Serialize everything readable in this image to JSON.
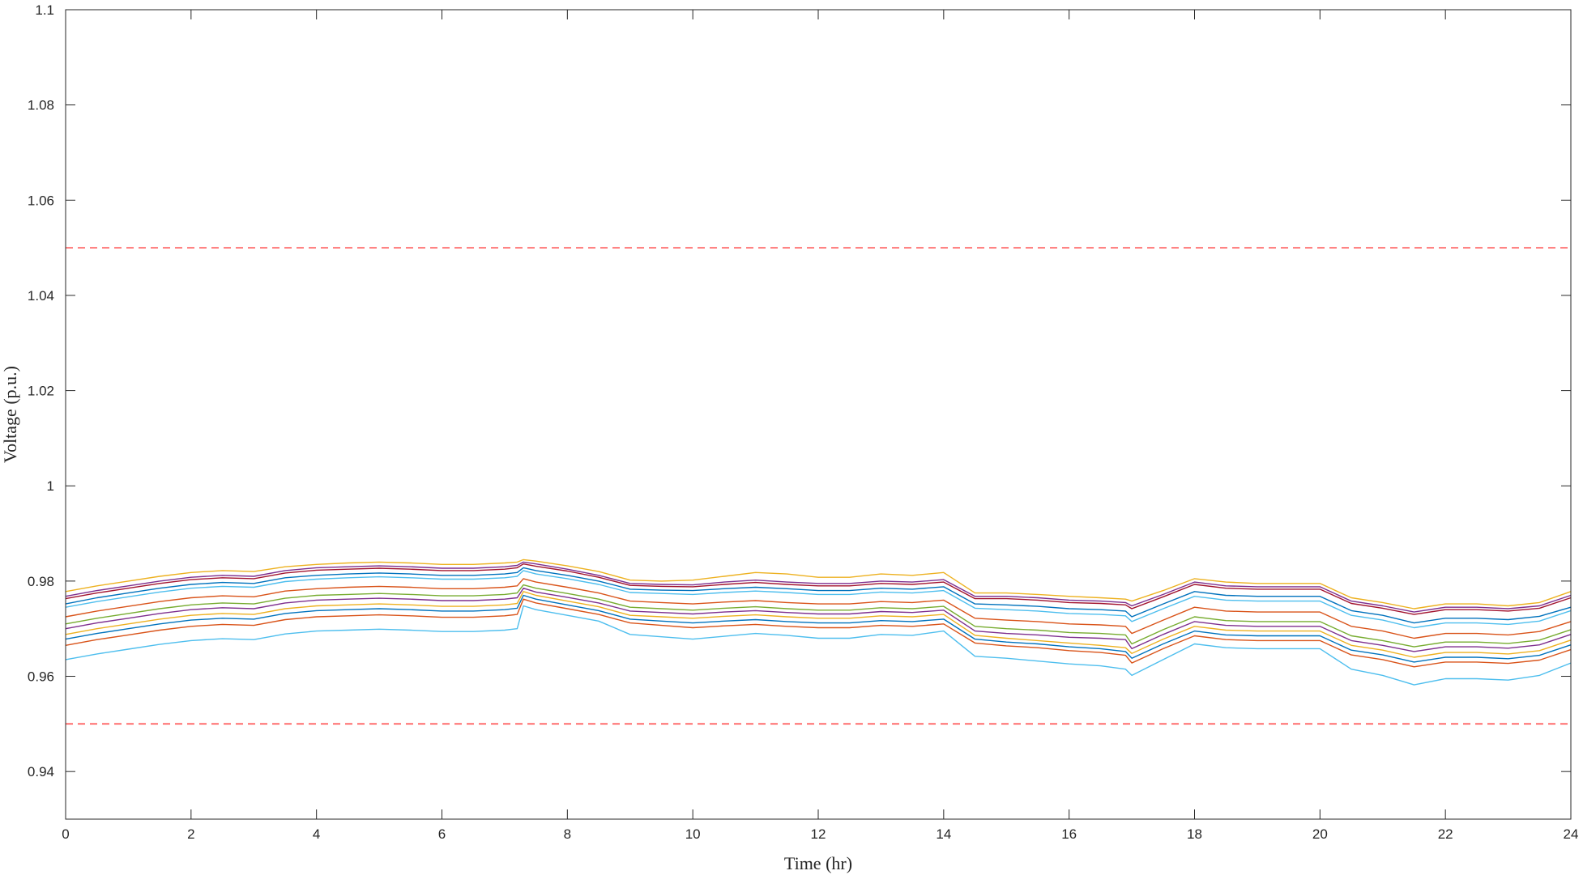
{
  "chart_data": {
    "type": "line",
    "title": "",
    "xlabel": "Time (hr)",
    "ylabel": "Voltage (p.u.)",
    "xlim": [
      0,
      24
    ],
    "ylim": [
      0.93,
      1.1
    ],
    "xticks": [
      0,
      2,
      4,
      6,
      8,
      10,
      12,
      14,
      16,
      18,
      20,
      22,
      24
    ],
    "xtick_labels": [
      "0",
      "2",
      "4",
      "6",
      "8",
      "10",
      "12",
      "14",
      "16",
      "18",
      "20",
      "22",
      "24"
    ],
    "yticks": [
      0.94,
      0.96,
      0.98,
      1.0,
      1.02,
      1.04,
      1.06,
      1.08,
      1.1
    ],
    "ytick_labels": [
      "0.94",
      "0.96",
      "0.98",
      "1",
      "1.02",
      "1.04",
      "1.06",
      "1.08",
      "1.1"
    ],
    "grid": false,
    "legend": "none",
    "limit_lines": [
      {
        "y": 1.05,
        "style": "dashed",
        "color": "#ff4d4d"
      },
      {
        "y": 0.95,
        "style": "dashed",
        "color": "#ff4d4d"
      }
    ],
    "x": [
      0,
      0.5,
      1,
      1.5,
      2,
      2.5,
      3,
      3.5,
      4,
      4.5,
      5,
      5.5,
      6,
      6.5,
      7,
      7.2,
      7.3,
      7.5,
      8,
      8.5,
      9,
      9.5,
      10,
      10.5,
      11,
      11.5,
      12,
      12.5,
      13,
      13.5,
      14,
      14.5,
      15,
      15.5,
      16,
      16.5,
      16.9,
      17,
      17.5,
      18,
      18.5,
      19,
      19.5,
      20,
      20.5,
      21,
      21.5,
      22,
      22.5,
      23,
      23.5,
      24
    ],
    "series": [
      {
        "color": "#edb120",
        "values": [
          0.9778,
          0.979,
          0.98,
          0.981,
          0.9818,
          0.9822,
          0.982,
          0.983,
          0.9835,
          0.9838,
          0.984,
          0.9838,
          0.9835,
          0.9835,
          0.9838,
          0.984,
          0.9845,
          0.9842,
          0.9832,
          0.982,
          0.9802,
          0.98,
          0.9802,
          0.981,
          0.9818,
          0.9815,
          0.9808,
          0.9808,
          0.9815,
          0.9812,
          0.9818,
          0.9775,
          0.9775,
          0.9772,
          0.9768,
          0.9765,
          0.9762,
          0.9758,
          0.978,
          0.9805,
          0.9798,
          0.9795,
          0.9795,
          0.9795,
          0.9765,
          0.9755,
          0.9742,
          0.9752,
          0.9752,
          0.9748,
          0.9755,
          0.9778
        ]
      },
      {
        "color": "#7e2f8e",
        "values": [
          0.9768,
          0.978,
          0.979,
          0.98,
          0.9808,
          0.9812,
          0.981,
          0.9822,
          0.9828,
          0.983,
          0.9832,
          0.983,
          0.9827,
          0.9827,
          0.983,
          0.9833,
          0.984,
          0.9836,
          0.9825,
          0.9812,
          0.9795,
          0.9793,
          0.9792,
          0.9798,
          0.9802,
          0.9798,
          0.9795,
          0.9795,
          0.98,
          0.9798,
          0.9803,
          0.9768,
          0.9768,
          0.9765,
          0.976,
          0.9758,
          0.9755,
          0.9748,
          0.9772,
          0.9798,
          0.979,
          0.9788,
          0.9788,
          0.9788,
          0.9758,
          0.9748,
          0.9735,
          0.9745,
          0.9745,
          0.9742,
          0.9748,
          0.977
        ]
      },
      {
        "color": "#a2142f",
        "values": [
          0.9763,
          0.9775,
          0.9785,
          0.9795,
          0.9803,
          0.9807,
          0.9805,
          0.9817,
          0.9823,
          0.9825,
          0.9827,
          0.9825,
          0.9822,
          0.9822,
          0.9825,
          0.9828,
          0.9836,
          0.9831,
          0.9821,
          0.9808,
          0.9791,
          0.9789,
          0.9788,
          0.9793,
          0.9797,
          0.9793,
          0.979,
          0.979,
          0.9795,
          0.9793,
          0.9798,
          0.9763,
          0.9763,
          0.976,
          0.9755,
          0.9753,
          0.975,
          0.9742,
          0.9767,
          0.9793,
          0.9785,
          0.9783,
          0.9783,
          0.9783,
          0.9753,
          0.9743,
          0.973,
          0.974,
          0.974,
          0.9737,
          0.9743,
          0.9765
        ]
      },
      {
        "color": "#0072bd",
        "values": [
          0.9752,
          0.9765,
          0.9775,
          0.9785,
          0.9793,
          0.9797,
          0.9795,
          0.9807,
          0.9812,
          0.9815,
          0.9817,
          0.9815,
          0.9812,
          0.9812,
          0.9815,
          0.9818,
          0.9828,
          0.9822,
          0.9812,
          0.98,
          0.9783,
          0.9781,
          0.978,
          0.9784,
          0.9787,
          0.9784,
          0.978,
          0.978,
          0.9785,
          0.9783,
          0.9788,
          0.9752,
          0.975,
          0.9747,
          0.9742,
          0.974,
          0.9737,
          0.9725,
          0.9752,
          0.9778,
          0.977,
          0.9768,
          0.9768,
          0.9768,
          0.9738,
          0.9728,
          0.9712,
          0.9722,
          0.9722,
          0.9719,
          0.9726,
          0.9745
        ]
      },
      {
        "color": "#4dbeee",
        "values": [
          0.9745,
          0.9757,
          0.9767,
          0.9777,
          0.9785,
          0.9789,
          0.9787,
          0.9799,
          0.9804,
          0.9807,
          0.9809,
          0.9807,
          0.9804,
          0.9804,
          0.9807,
          0.981,
          0.9822,
          0.9815,
          0.9805,
          0.9793,
          0.9776,
          0.9774,
          0.9772,
          0.9776,
          0.9779,
          0.9776,
          0.9772,
          0.9772,
          0.9777,
          0.9775,
          0.978,
          0.9743,
          0.974,
          0.9737,
          0.9732,
          0.973,
          0.9727,
          0.9715,
          0.9742,
          0.9768,
          0.976,
          0.9758,
          0.9758,
          0.9758,
          0.9728,
          0.9718,
          0.9702,
          0.9712,
          0.9712,
          0.9709,
          0.9716,
          0.9738
        ]
      },
      {
        "color": "#d95319",
        "values": [
          0.9725,
          0.9737,
          0.9747,
          0.9757,
          0.9765,
          0.9769,
          0.9767,
          0.9779,
          0.9784,
          0.9787,
          0.9789,
          0.9787,
          0.9784,
          0.9784,
          0.9787,
          0.979,
          0.9805,
          0.9798,
          0.9787,
          0.9775,
          0.9758,
          0.9755,
          0.9752,
          0.9756,
          0.9759,
          0.9755,
          0.9752,
          0.9752,
          0.9757,
          0.9755,
          0.976,
          0.9722,
          0.9718,
          0.9715,
          0.971,
          0.9708,
          0.9705,
          0.969,
          0.9718,
          0.9745,
          0.9737,
          0.9735,
          0.9735,
          0.9735,
          0.9705,
          0.9695,
          0.968,
          0.969,
          0.969,
          0.9687,
          0.9694,
          0.9715
        ]
      },
      {
        "color": "#77ac30",
        "values": [
          0.971,
          0.9722,
          0.9732,
          0.9742,
          0.975,
          0.9754,
          0.9752,
          0.9764,
          0.977,
          0.9772,
          0.9774,
          0.9772,
          0.9769,
          0.9769,
          0.9772,
          0.9775,
          0.9792,
          0.9785,
          0.9774,
          0.9762,
          0.9745,
          0.9742,
          0.9739,
          0.9743,
          0.9746,
          0.9742,
          0.9739,
          0.9739,
          0.9744,
          0.9742,
          0.9747,
          0.9705,
          0.97,
          0.9697,
          0.9692,
          0.969,
          0.9687,
          0.9668,
          0.9698,
          0.9725,
          0.9717,
          0.9715,
          0.9715,
          0.9715,
          0.9685,
          0.9675,
          0.9662,
          0.9672,
          0.9672,
          0.9669,
          0.9676,
          0.9698
        ]
      },
      {
        "color": "#7e2f8e",
        "values": [
          0.97,
          0.9712,
          0.9722,
          0.9732,
          0.974,
          0.9744,
          0.9742,
          0.9754,
          0.976,
          0.9762,
          0.9764,
          0.9762,
          0.9759,
          0.9759,
          0.9762,
          0.9765,
          0.9785,
          0.9777,
          0.9766,
          0.9754,
          0.9737,
          0.9734,
          0.9731,
          0.9735,
          0.9738,
          0.9734,
          0.9731,
          0.9731,
          0.9736,
          0.9734,
          0.9739,
          0.9695,
          0.969,
          0.9687,
          0.9682,
          0.968,
          0.9677,
          0.9658,
          0.9688,
          0.9715,
          0.9707,
          0.9705,
          0.9705,
          0.9705,
          0.9675,
          0.9665,
          0.9652,
          0.9662,
          0.9662,
          0.9659,
          0.9666,
          0.9688
        ]
      },
      {
        "color": "#edb120",
        "values": [
          0.9688,
          0.97,
          0.971,
          0.972,
          0.9728,
          0.9732,
          0.973,
          0.9742,
          0.9748,
          0.975,
          0.9752,
          0.975,
          0.9747,
          0.9747,
          0.975,
          0.9753,
          0.9778,
          0.977,
          0.9758,
          0.9746,
          0.9728,
          0.9725,
          0.9722,
          0.9726,
          0.9729,
          0.9725,
          0.9722,
          0.9722,
          0.9727,
          0.9725,
          0.973,
          0.9686,
          0.968,
          0.9675,
          0.967,
          0.9665,
          0.966,
          0.9648,
          0.9678,
          0.9705,
          0.9697,
          0.9695,
          0.9695,
          0.9695,
          0.9665,
          0.9655,
          0.964,
          0.965,
          0.965,
          0.9647,
          0.9654,
          0.9676
        ]
      },
      {
        "color": "#0072bd",
        "values": [
          0.9678,
          0.969,
          0.97,
          0.971,
          0.9718,
          0.9722,
          0.972,
          0.9732,
          0.9738,
          0.974,
          0.9742,
          0.974,
          0.9737,
          0.9737,
          0.974,
          0.9743,
          0.977,
          0.9762,
          0.975,
          0.9738,
          0.972,
          0.9716,
          0.9712,
          0.9716,
          0.9719,
          0.9715,
          0.9712,
          0.9712,
          0.9717,
          0.9715,
          0.972,
          0.9678,
          0.9672,
          0.9668,
          0.9662,
          0.9658,
          0.9652,
          0.9638,
          0.9668,
          0.9695,
          0.9687,
          0.9685,
          0.9685,
          0.9685,
          0.9655,
          0.9645,
          0.963,
          0.964,
          0.964,
          0.9637,
          0.9644,
          0.9666
        ]
      },
      {
        "color": "#d95319",
        "values": [
          0.9665,
          0.9677,
          0.9687,
          0.9697,
          0.9705,
          0.9709,
          0.9707,
          0.9719,
          0.9725,
          0.9727,
          0.9729,
          0.9727,
          0.9724,
          0.9724,
          0.9727,
          0.973,
          0.9762,
          0.9754,
          0.9742,
          0.973,
          0.9712,
          0.9707,
          0.9702,
          0.9706,
          0.9709,
          0.9705,
          0.9702,
          0.9702,
          0.9707,
          0.9705,
          0.971,
          0.967,
          0.9664,
          0.966,
          0.9654,
          0.965,
          0.9644,
          0.9628,
          0.9658,
          0.9685,
          0.9677,
          0.9675,
          0.9675,
          0.9675,
          0.9645,
          0.9635,
          0.962,
          0.963,
          0.963,
          0.9627,
          0.9634,
          0.9656
        ]
      },
      {
        "color": "#4dbeee",
        "values": [
          0.9635,
          0.9647,
          0.9657,
          0.9667,
          0.9675,
          0.9679,
          0.9677,
          0.9689,
          0.9695,
          0.9697,
          0.9699,
          0.9697,
          0.9694,
          0.9694,
          0.9697,
          0.97,
          0.9748,
          0.974,
          0.9728,
          0.9716,
          0.9688,
          0.9683,
          0.9678,
          0.9684,
          0.969,
          0.9686,
          0.968,
          0.968,
          0.9688,
          0.9686,
          0.9695,
          0.9642,
          0.9638,
          0.9632,
          0.9626,
          0.9622,
          0.9615,
          0.9602,
          0.9635,
          0.9668,
          0.966,
          0.9658,
          0.9658,
          0.9658,
          0.9615,
          0.9602,
          0.9582,
          0.9595,
          0.9595,
          0.9592,
          0.9602,
          0.9628
        ]
      }
    ]
  }
}
